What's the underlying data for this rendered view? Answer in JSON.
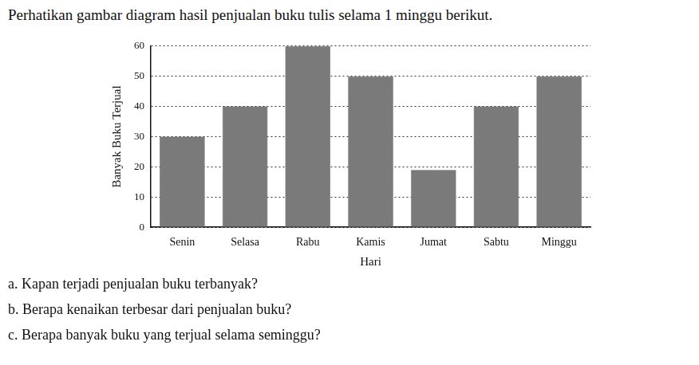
{
  "chart_data": {
    "type": "bar",
    "title": "Perhatikan gambar diagram hasil penjualan buku tulis selama 1 minggu berikut.",
    "x_label": "Hari",
    "y_label": "Banyak Buku Terjual",
    "categories": [
      "Senin",
      "Selasa",
      "Rabu",
      "Kamis",
      "Jumat",
      "Sabtu",
      "Minggu"
    ],
    "values": [
      30,
      40,
      60,
      50,
      19,
      40,
      50
    ],
    "color": "#7a7a7a",
    "ylim": [
      0,
      60
    ],
    "yticks": [
      0,
      10,
      20,
      30,
      40,
      50,
      60
    ],
    "grid": true,
    "annotations": [
      "a. Kapan terjadi penjualan buku terbanyak?",
      "b. Berapa kenaikan terbesar dari penjualan buku?",
      "c. Berapa banyak buku yang terjual selama seminggu?"
    ]
  }
}
